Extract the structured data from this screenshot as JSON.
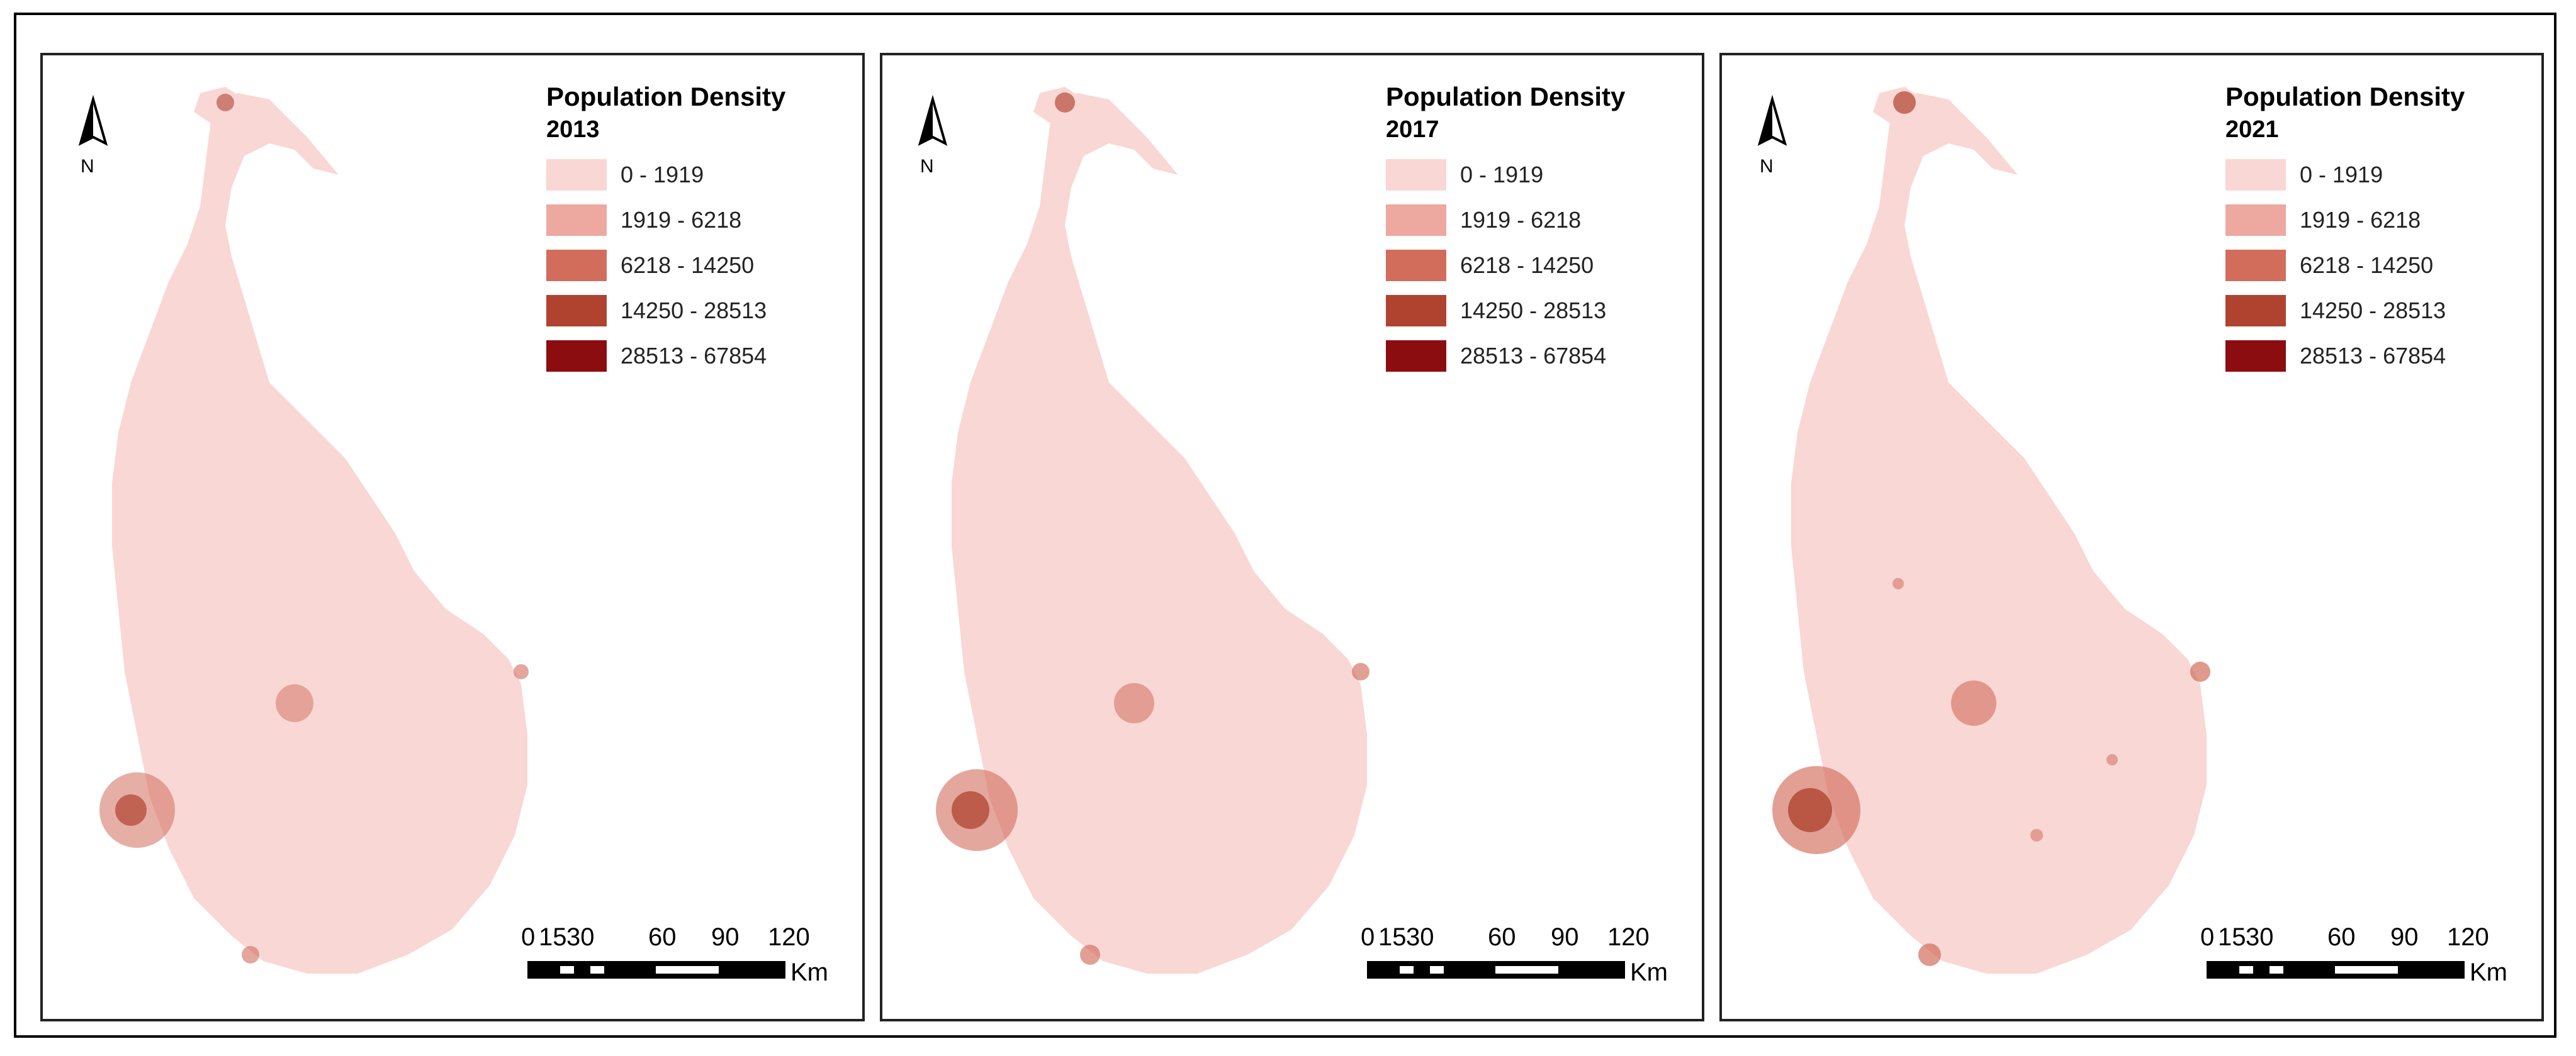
{
  "figure": {
    "panels": [
      {
        "year": "2013",
        "legend_title": "Population Density",
        "north": "N"
      },
      {
        "year": "2017",
        "legend_title": "Population Density",
        "north": "N"
      },
      {
        "year": "2021",
        "legend_title": "Population Density",
        "north": "N"
      }
    ],
    "legend_classes": [
      {
        "label": "0 - 1919",
        "color": "#f9d7d4"
      },
      {
        "label": "1919 - 6218",
        "color": "#eda89f"
      },
      {
        "label": "6218 - 14250",
        "color": "#d26d5c"
      },
      {
        "label": "14250 - 28513",
        "color": "#b04330"
      },
      {
        "label": "28513 - 67854",
        "color": "#8c0d10"
      }
    ],
    "scale": {
      "ticks": [
        "0",
        "15",
        "30",
        "60",
        "90",
        "120"
      ],
      "unit": "Km"
    },
    "colors": {
      "land": "#f9d7d4",
      "frame": "#000000"
    }
  }
}
